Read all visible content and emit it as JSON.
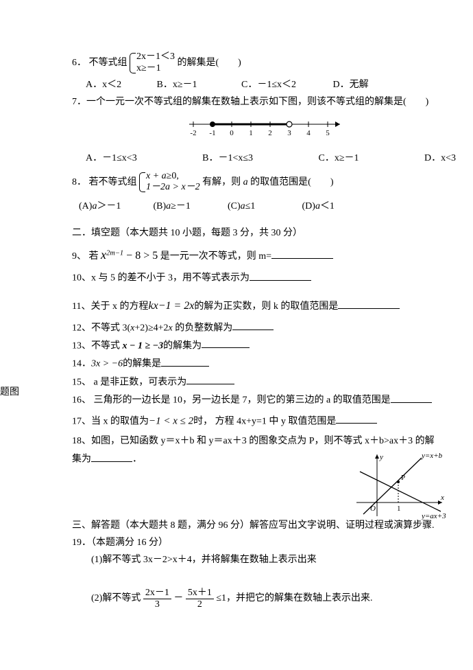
{
  "side_label": "题图",
  "q6": {
    "num": "6．",
    "stem_pre": "不等式组",
    "sys_line1": "2x－1＜3",
    "sys_line2": "x≥－1",
    "stem_post": "的解集是(　　)",
    "opts": {
      "A": "A．x＜2",
      "B": "B．x≥－1",
      "C": "C．－1≤x＜2",
      "D": "D．无解"
    }
  },
  "q7": {
    "stem": "7．一个一元一次不等式组的解集在数轴上表示如下图，则该不等式组的解集是(　　)",
    "number_line": {
      "ticks": [
        -2,
        -1,
        0,
        1,
        2,
        3,
        4,
        5
      ],
      "closed_point": -1,
      "open_point": 3,
      "segment_from": -1,
      "segment_to": 3,
      "arrow": true
    },
    "opts": {
      "A": "A．－1≤x<3",
      "B": "B．－1<x≤3",
      "C": "C．x≥－1",
      "D": "D．x<3"
    }
  },
  "q8": {
    "num": "8．",
    "stem_pre": "若不等式组",
    "sys_line1_pre": "x + a",
    "sys_line1_post": "≥0,",
    "sys_line2": "1－2a > x－2",
    "stem_mid": "有解，则 ",
    "stem_var": "a",
    "stem_post": " 的取值范围是(　　)",
    "opts": {
      "A_pre": "(A)",
      "A_var": "a",
      "A_post": "＞－1",
      "B_pre": "(B)",
      "B_var": "a",
      "B_post": "≥－1",
      "C_pre": "(C)",
      "C_var": "a",
      "C_post": "≤1",
      "D_pre": "(D)",
      "D_var": "a",
      "D_post": "＜1"
    }
  },
  "sec2": "二．填空题（本大题共 10 小题，每题 3 分，共 30 分）",
  "q9": {
    "pre": "9、 若 ",
    "var": "x",
    "exp": "2m−1",
    "mid": " − 8 > 5",
    "post": "是一元一次不等式，则 m="
  },
  "q10": "10、x 与 5 的差不小于 3，用不等式表示为",
  "q11": {
    "pre": "11、关于 x 的方程",
    "expr": "kx−1 = 2x",
    "post": "的解为正实数，则 k 的取值范围是"
  },
  "q12": {
    "pre": "12、不等式 3(",
    "x": "x",
    "mid": "+2)≥4+2",
    "x2": "x",
    "post": " 的负整数解为"
  },
  "q13": {
    "pre": "13、不等式 ",
    "expr": "x − 1 ≥ −3",
    "post": "的解集为"
  },
  "q14": {
    "pre": "14．",
    "expr": "3x > −6",
    "post": "的解集是"
  },
  "q15": "15、 a 是非正数，可表示为",
  "q16": "16、 三角形的一边长是 10，另一边长是 7，则它的第三边的 a 的取值范围是",
  "q17": {
    "pre": "17、当 x 的取值为",
    "expr": "−1 < x ≤ 2",
    "post": "时， 方程 4x+y=1 中 y 取值范围是"
  },
  "q18": {
    "l1": "18、如图，已知函数 y＝x＋b 和 y＝ax＋3 的图象交点为 P，则不等式 x＋b>ax＋3 的解",
    "l2_pre": "集为",
    "l2_post": "．",
    "graph": {
      "x_axis_label": "x",
      "y_axis_label": "y",
      "line1_label": "y=x+b",
      "line2_label": "y=ax+3",
      "point_label": "P",
      "origin_label": "O",
      "tick_label": "1",
      "line1_color": "#000000",
      "line2_color": "#000000"
    }
  },
  "sec3": "三、解答题（本大题共 8 题，满分 96 分）解答应写出文字说明、证明过程或演算步骤.",
  "q19": {
    "head": "19．（本题满分 16 分）",
    "p1": "(1)解不等式 3x－2>x＋4，并将解集在数轴上表示出来",
    "p2_pre": "(2)解不等式",
    "frac1_num": "2x－1",
    "frac1_den": "3",
    "minus": "－",
    "frac2_num": "5x＋1",
    "frac2_den": "2",
    "p2_post": "≤1，并把它的解集在数轴上表示出来."
  },
  "colors": {
    "text": "#000000",
    "background": "#ffffff"
  }
}
